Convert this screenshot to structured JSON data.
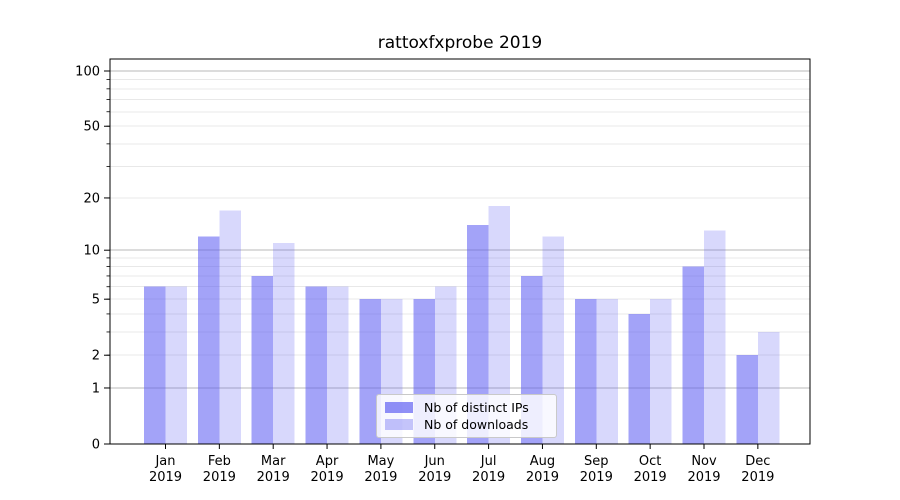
{
  "chart_data": {
    "type": "bar",
    "title": "rattoxfxprobe 2019",
    "year_label": "2019",
    "categories": [
      "Jan",
      "Feb",
      "Mar",
      "Apr",
      "May",
      "Jun",
      "Jul",
      "Aug",
      "Sep",
      "Oct",
      "Nov",
      "Dec"
    ],
    "series": [
      {
        "name": "Nb of distinct IPs",
        "color": "#5b5bf2",
        "opacity": 0.56,
        "rendered_color": "#a6a6f8",
        "values": [
          6,
          12,
          7,
          6,
          5,
          5,
          14,
          7,
          5,
          4,
          8,
          2
        ]
      },
      {
        "name": "Nb of downloads",
        "color": "#5b5bf2",
        "opacity": 0.24,
        "rendered_color": "#d8d8f9",
        "values": [
          6,
          17,
          11,
          6,
          5,
          6,
          18,
          12,
          5,
          5,
          13,
          3
        ]
      }
    ],
    "y_ticks": [
      {
        "v": 100,
        "label": "100"
      },
      {
        "v": 50,
        "label": "50"
      },
      {
        "v": 20,
        "label": "20"
      },
      {
        "v": 10,
        "label": "10"
      },
      {
        "v": 5,
        "label": "5"
      },
      {
        "v": 2,
        "label": "2"
      },
      {
        "v": 1,
        "label": "1"
      },
      {
        "v": 0,
        "label": "0"
      }
    ],
    "scale": "log1p",
    "ylim": [
      0,
      116
    ],
    "grid": "on",
    "legend_position": "lower center",
    "grid_major_color": "#b8b8b8",
    "grid_minor_color": "#e8e8e8"
  }
}
